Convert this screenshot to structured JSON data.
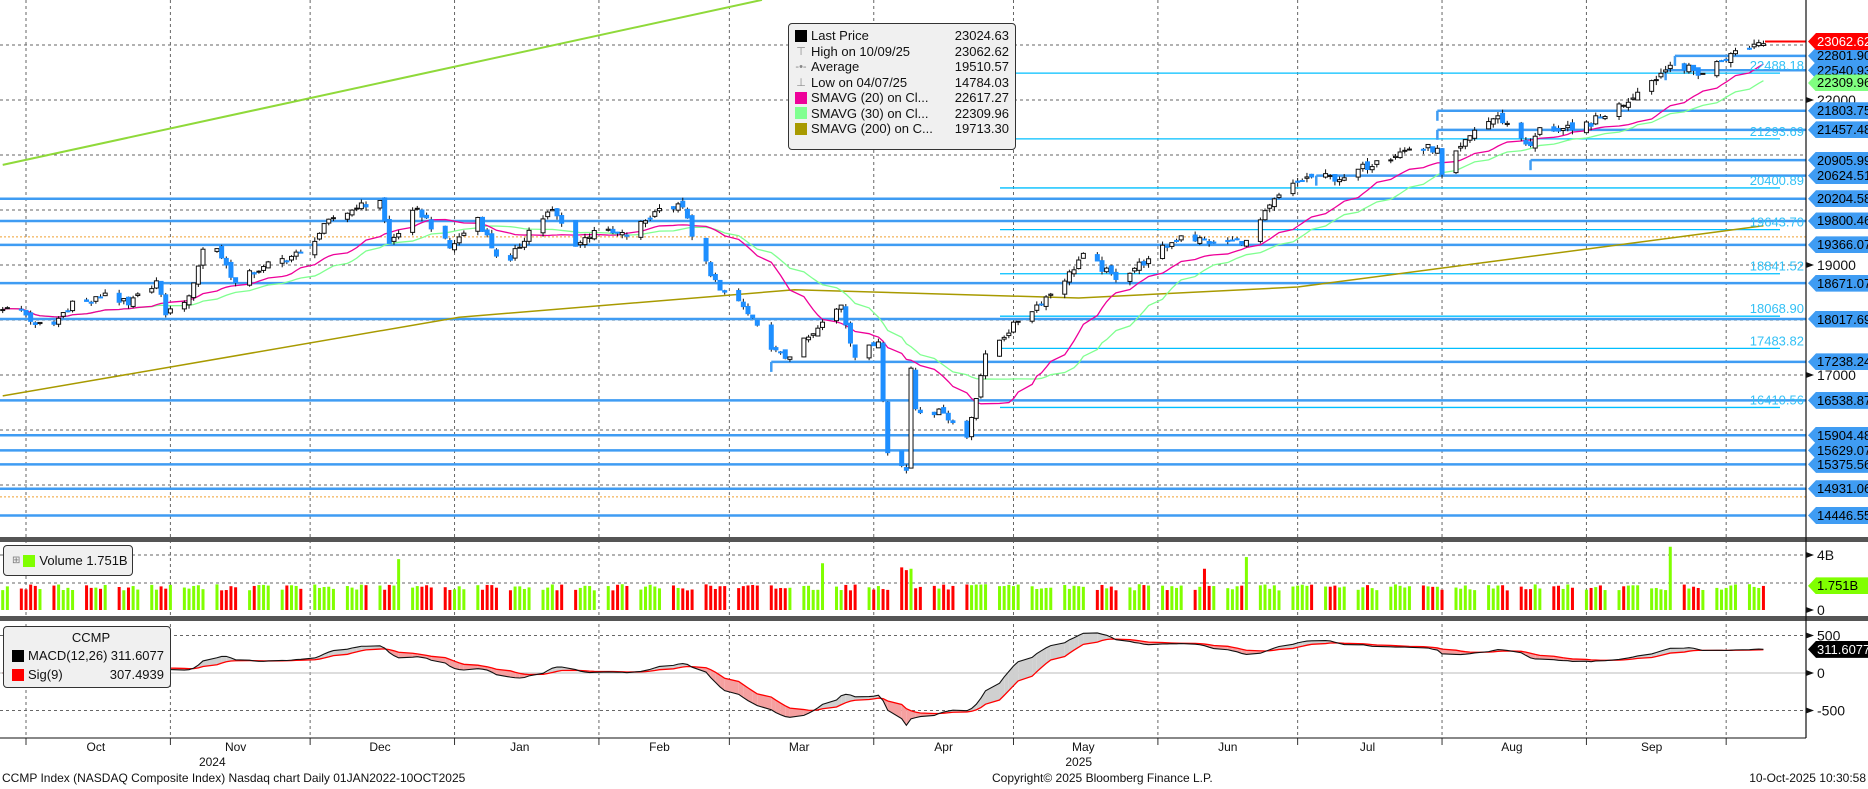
{
  "legend": {
    "items": [
      {
        "icon": "square",
        "label": "Last Price",
        "value": "23024.63",
        "color": "#000000"
      },
      {
        "icon": "high-marker",
        "label": "High on 10/09/25",
        "value": "23062.62",
        "color": "#888888"
      },
      {
        "icon": "average-marker",
        "label": "Average",
        "value": "19510.57",
        "color": "#888888"
      },
      {
        "icon": "low-marker",
        "label": "Low on 04/07/25",
        "value": "14784.03",
        "color": "#888888"
      },
      {
        "icon": "square",
        "label": "SMAVG (20)  on Cl...",
        "value": "22617.27",
        "color": "#ee0099"
      },
      {
        "icon": "square",
        "label": "SMAVG (30)  on Cl...",
        "value": "22309.96",
        "color": "#80ff90"
      },
      {
        "icon": "square",
        "label": "SMAVG (200)  on C...",
        "value": "19713.30",
        "color": "#a89a00"
      }
    ]
  },
  "volume_legend": {
    "label": "Volume",
    "value": "1.751B",
    "color": "#80ff00"
  },
  "macd_legend": {
    "title": "CCMP",
    "items": [
      {
        "label": "MACD(12,26)",
        "value": "311.6077",
        "color": "#000000"
      },
      {
        "label": "Sig(9)",
        "value": "307.4939",
        "color": "#ff0000"
      }
    ]
  },
  "footer": {
    "left": "CCMP Index (NASDAQ Composite Index) Nasdaq chart Daily 01JAN2022-10OCT2025",
    "center": "Copyright© 2025 Bloomberg Finance L.P.",
    "right": "10-Oct-2025 10:30:58"
  },
  "chart_data": {
    "type": "candlestick",
    "title": "CCMP Index",
    "closes": [
      [
        "2024-09-26",
        18190
      ],
      [
        "2024-09-30",
        18189
      ],
      [
        "2024-10-03",
        17918
      ],
      [
        "2024-10-07",
        17923
      ],
      [
        "2024-10-11",
        18342
      ],
      [
        "2024-10-15",
        18315
      ],
      [
        "2024-10-18",
        18489
      ],
      [
        "2024-10-23",
        18276
      ],
      [
        "2024-10-29",
        18712
      ],
      [
        "2024-10-31",
        18095
      ],
      [
        "2024-11-05",
        18439
      ],
      [
        "2024-11-08",
        19287
      ],
      [
        "2024-11-11",
        19298
      ],
      [
        "2024-11-15",
        18680
      ],
      [
        "2024-11-21",
        18972
      ],
      [
        "2024-11-29",
        19218
      ],
      [
        "2024-12-06",
        19860
      ],
      [
        "2024-12-11",
        20034
      ],
      [
        "2024-12-16",
        20173
      ],
      [
        "2024-12-18",
        19393
      ],
      [
        "2024-12-24",
        20031
      ],
      [
        "2024-12-31",
        19311
      ],
      [
        "2025-01-06",
        19864
      ],
      [
        "2025-01-10",
        19162
      ],
      [
        "2025-01-13",
        19088
      ],
      [
        "2025-01-17",
        19630
      ],
      [
        "2025-01-22",
        20009
      ],
      [
        "2025-01-27",
        19341
      ],
      [
        "2025-01-31",
        19627
      ],
      [
        "2025-02-07",
        19523
      ],
      [
        "2025-02-14",
        20027
      ],
      [
        "2025-02-19",
        20056
      ],
      [
        "2025-02-21",
        19524
      ],
      [
        "2025-02-27",
        18544
      ],
      [
        "2025-03-03",
        18350
      ],
      [
        "2025-03-10",
        17468
      ],
      [
        "2025-03-13",
        17303
      ],
      [
        "2025-03-19",
        17750
      ],
      [
        "2025-03-25",
        18271
      ],
      [
        "2025-03-28",
        17323
      ],
      [
        "2025-04-02",
        17601
      ],
      [
        "2025-04-04",
        15588
      ],
      [
        "2025-04-08",
        15268
      ],
      [
        "2025-04-09",
        17124
      ],
      [
        "2025-04-10",
        16387
      ],
      [
        "2025-04-16",
        16307
      ],
      [
        "2025-04-21",
        15870
      ],
      [
        "2025-04-25",
        17383
      ],
      [
        "2025-05-02",
        17977
      ],
      [
        "2025-05-12",
        18708
      ],
      [
        "2025-05-16",
        19211
      ],
      [
        "2025-05-23",
        18737
      ],
      [
        "2025-05-30",
        19113
      ],
      [
        "2025-06-06",
        19530
      ],
      [
        "2025-06-13",
        19407
      ],
      [
        "2025-06-20",
        19447
      ],
      [
        "2025-06-27",
        20273
      ],
      [
        "2025-07-03",
        20601
      ],
      [
        "2025-07-11",
        20586
      ],
      [
        "2025-07-18",
        20896
      ],
      [
        "2025-07-25",
        21108
      ],
      [
        "2025-07-31",
        21122
      ],
      [
        "2025-08-01",
        20650
      ],
      [
        "2025-08-08",
        21450
      ],
      [
        "2025-08-13",
        21713
      ],
      [
        "2025-08-20",
        21172
      ],
      [
        "2025-08-22",
        21497
      ],
      [
        "2025-08-29",
        21455
      ],
      [
        "2025-09-05",
        21700
      ],
      [
        "2025-09-12",
        22141
      ],
      [
        "2025-09-19",
        22631
      ],
      [
        "2025-09-26",
        22484
      ],
      [
        "2025-10-02",
        22844
      ],
      [
        "2025-10-08",
        23043
      ],
      [
        "2025-10-09",
        23024
      ]
    ],
    "sma200": [
      [
        "2024-09-26",
        16620
      ],
      [
        "2025-01-02",
        18050
      ],
      [
        "2025-03-15",
        18550
      ],
      [
        "2025-05-15",
        18400
      ],
      [
        "2025-07-01",
        18600
      ],
      [
        "2025-08-15",
        19100
      ],
      [
        "2025-10-09",
        19713
      ]
    ],
    "trendline": [
      [
        "2024-09-26",
        20820
      ],
      [
        "2025-03-08",
        23820
      ]
    ],
    "high": 23062.62,
    "low": 14784.03,
    "average": 19510.57,
    "support_levels": [
      {
        "value": 22801.9,
        "label": "22801.90",
        "from": "2025-09-20"
      },
      {
        "value": 22540.93,
        "label": "22540.93",
        "from": "2025-09-18"
      },
      {
        "value": 21803.75,
        "label": "21803.75",
        "from": "2025-07-31"
      },
      {
        "value": 21457.48,
        "label": "21457.48",
        "from": "2025-07-31"
      },
      {
        "value": 20905.99,
        "label": "20905.99",
        "from": "2025-08-20"
      },
      {
        "value": 20624.51,
        "label": "20624.51",
        "from": "2025-07-05"
      },
      {
        "value": 20204.58,
        "label": "20204.58",
        "from": null
      },
      {
        "value": 19800.46,
        "label": "19800.46",
        "from": null
      },
      {
        "value": 19366.07,
        "label": "19366.07",
        "from": null
      },
      {
        "value": 18671.07,
        "label": "18671.07",
        "from": null
      },
      {
        "value": 18017.69,
        "label": "18017.69",
        "from": null
      },
      {
        "value": 17238.24,
        "label": "17238.24",
        "from": "2025-03-10"
      },
      {
        "value": 16538.87,
        "label": "16538.87",
        "from": null
      },
      {
        "value": 15904.48,
        "label": "15904.48",
        "from": null
      },
      {
        "value": 15629.07,
        "label": "15629.07",
        "from": null
      },
      {
        "value": 15375.56,
        "label": "15375.56",
        "from": null
      },
      {
        "value": 14931.06,
        "label": "14931.06",
        "from": null
      },
      {
        "value": 14446.55,
        "label": "14446.55",
        "from": null
      }
    ],
    "fib_levels": [
      {
        "value": 22488.18,
        "label": "22488.18"
      },
      {
        "value": 21293.69,
        "label": "21293.69"
      },
      {
        "value": 20400.89,
        "label": "20400.89"
      },
      {
        "value": 19643.7,
        "label": "19643.70"
      },
      {
        "value": 18841.52,
        "label": "18841.52"
      },
      {
        "value": 18068.9,
        "label": "18068.90"
      },
      {
        "value": 17483.82,
        "label": "17483.82"
      },
      {
        "value": 16410.56,
        "label": "16410.56"
      }
    ],
    "price_ticks": [
      22000,
      19000,
      17000
    ],
    "price_grid": [
      14000,
      15000,
      16000,
      17000,
      18000,
      19000,
      20000,
      21000,
      22000,
      23000
    ],
    "tags": [
      {
        "value": 23062.62,
        "label": "23062.62",
        "bg": "#ff0000",
        "fg": "#ffffff"
      },
      {
        "value": 22309.96,
        "label": "22309.96",
        "bg": "#80ff80",
        "fg": "#000000"
      }
    ],
    "months": [
      {
        "label": "Oct",
        "date": "2024-10-16"
      },
      {
        "label": "Nov",
        "date": "2024-11-15"
      },
      {
        "label": "Dec",
        "date": "2024-12-16"
      },
      {
        "label": "Jan",
        "date": "2025-01-15"
      },
      {
        "label": "Feb",
        "date": "2025-02-14"
      },
      {
        "label": "Mar",
        "date": "2025-03-16"
      },
      {
        "label": "Apr",
        "date": "2025-04-16"
      },
      {
        "label": "May",
        "date": "2025-05-16"
      },
      {
        "label": "Jun",
        "date": "2025-06-16"
      },
      {
        "label": "Jul",
        "date": "2025-07-16"
      },
      {
        "label": "Aug",
        "date": "2025-08-16"
      },
      {
        "label": "Sep",
        "date": "2025-09-15"
      }
    ],
    "month_starts": [
      "2024-10-01",
      "2024-11-01",
      "2024-12-01",
      "2025-01-01",
      "2025-02-01",
      "2025-03-01",
      "2025-04-01",
      "2025-05-01",
      "2025-06-01",
      "2025-07-01",
      "2025-08-01",
      "2025-09-01",
      "2025-10-01"
    ],
    "years": [
      {
        "label": "2024",
        "date": "2024-11-10"
      },
      {
        "label": "2025",
        "date": "2025-05-15"
      }
    ],
    "volume": {
      "unit": "B",
      "base": 1.65,
      "jitter": 0.45,
      "last": 1.751,
      "last_label": "1.751B",
      "ticks": [
        {
          "value": 4,
          "label": "4B"
        },
        {
          "value": 0,
          "label": "0"
        }
      ],
      "spikes": [
        [
          "2024-12-20",
          3.7
        ],
        [
          "2025-03-21",
          3.4
        ],
        [
          "2025-04-07",
          3.1
        ],
        [
          "2025-04-08",
          2.9
        ],
        [
          "2025-04-09",
          3.0
        ],
        [
          "2025-06-20",
          3.85
        ],
        [
          "2025-06-11",
          3.0
        ],
        [
          "2025-09-19",
          4.6
        ]
      ]
    },
    "macd": {
      "fast": 12,
      "slow": 26,
      "signal": 9,
      "last_label": "311.6077",
      "ticks": [
        {
          "value": 500,
          "label": "500"
        },
        {
          "value": 0,
          "label": "0"
        },
        {
          "value": -500,
          "label": "-500"
        }
      ]
    }
  }
}
